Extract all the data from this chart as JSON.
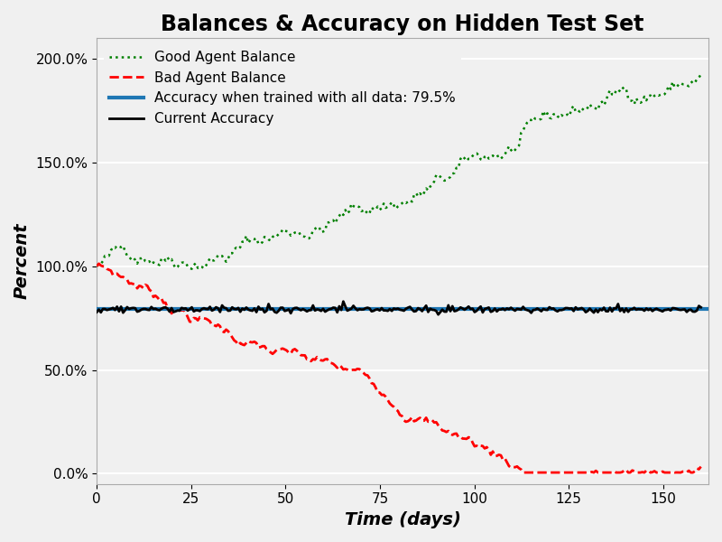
{
  "title": "Balances & Accuracy on Hidden Test Set",
  "xlabel": "Time (days)",
  "ylabel": "Percent",
  "xlim": [
    0,
    162
  ],
  "ylim": [
    -0.05,
    2.1
  ],
  "xticks": [
    0,
    25,
    50,
    75,
    100,
    125,
    150
  ],
  "accuracy_all_data": 0.795,
  "current_accuracy_mean": 0.792,
  "legend_entries": [
    "Good Agent Balance",
    "Bad Agent Balance",
    "Accuracy when trained with all data: 79.5%",
    "Current Accuracy"
  ],
  "good_agent_color": "#008000",
  "bad_agent_color": "#ff0000",
  "accuracy_all_color": "#1f77b4",
  "current_accuracy_color": "#000000",
  "background_color": "#f0f0f0",
  "grid_color": "#ffffff",
  "title_fontsize": 17,
  "label_fontsize": 14,
  "tick_fontsize": 11,
  "legend_fontsize": 11
}
